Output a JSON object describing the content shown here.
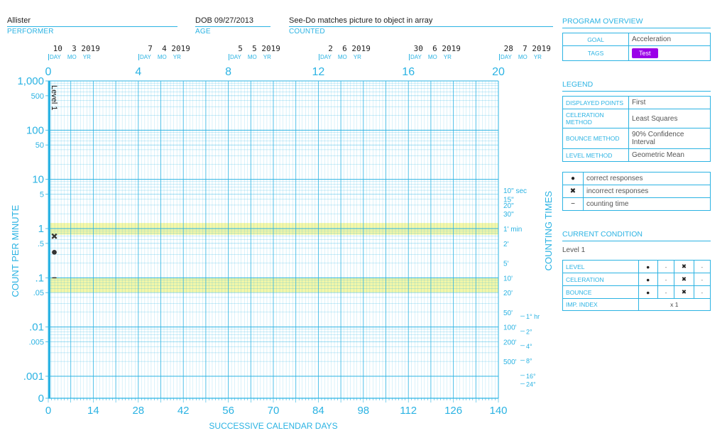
{
  "header": {
    "performer": {
      "value": "Allister",
      "label": "PERFORMER"
    },
    "age": {
      "value": "DOB 09/27/2013",
      "label": "AGE"
    },
    "counted": {
      "value": "See-Do matches picture to object in array",
      "label": "COUNTED"
    }
  },
  "dates": [
    {
      "day": "10",
      "mo": "3",
      "yr": "2019"
    },
    {
      "day": "7",
      "mo": "4",
      "yr": "2019"
    },
    {
      "day": "5",
      "mo": "5",
      "yr": "2019"
    },
    {
      "day": "2",
      "mo": "6",
      "yr": "2019"
    },
    {
      "day": "30",
      "mo": "6",
      "yr": "2019"
    },
    {
      "day": "28",
      "mo": "7",
      "yr": "2019"
    }
  ],
  "date_sub": {
    "day": "DAY",
    "mo": "MO",
    "yr": "YR"
  },
  "program": {
    "title": "PROGRAM OVERVIEW",
    "goal_label": "GOAL",
    "goal_value": "Acceleration",
    "tags_label": "TAGS",
    "tag": "Test"
  },
  "legend": {
    "title": "LEGEND",
    "rows": [
      {
        "k": "DISPLAYED POINTS",
        "v": "First"
      },
      {
        "k": "CELERATION METHOD",
        "v": "Least Squares"
      },
      {
        "k": "BOUNCE METHOD",
        "v": "90% Confidence Interval"
      },
      {
        "k": "LEVEL METHOD",
        "v": "Geometric Mean"
      }
    ],
    "symbols": [
      {
        "sym": "●",
        "label": "correct responses"
      },
      {
        "sym": "✖",
        "label": "incorrect responses"
      },
      {
        "sym": "−",
        "label": "counting time"
      }
    ]
  },
  "condition": {
    "title": "CURRENT CONDITION",
    "name": "Level 1",
    "rows": [
      {
        "k": "LEVEL",
        "a": "●",
        "b": "-",
        "c": "✖",
        "d": "-"
      },
      {
        "k": "CELERATION",
        "a": "●",
        "b": "-",
        "c": "✖",
        "d": "-"
      },
      {
        "k": "BOUNCE",
        "a": "●",
        "b": "-",
        "c": "✖",
        "d": "-"
      }
    ],
    "imp_label": "IMP. INDEX",
    "imp_value": "x 1"
  },
  "colors": {
    "grid": "#2bb3e3",
    "band": "#f5f7a8",
    "accent": "#9b00e8"
  },
  "chart_data": {
    "type": "scatter",
    "title": "",
    "ylabel": "COUNT PER MINUTE",
    "xlabel": "SUCCESSIVE CALENDAR DAYS",
    "right_label": "COUNTING TIMES",
    "y_scale": "log",
    "ylim": [
      0.0006,
      1000
    ],
    "xlim": [
      0,
      140
    ],
    "y_ticks": [
      {
        "v": 1000,
        "t": "1,000"
      },
      {
        "v": 500,
        "t": "500"
      },
      {
        "v": 100,
        "t": "100"
      },
      {
        "v": 50,
        "t": "50"
      },
      {
        "v": 10,
        "t": "10"
      },
      {
        "v": 5,
        "t": "5"
      },
      {
        "v": 1,
        "t": "1"
      },
      {
        "v": 0.5,
        "t": ".5"
      },
      {
        "v": 0.1,
        "t": ".1"
      },
      {
        "v": 0.05,
        "t": ".05"
      },
      {
        "v": 0.01,
        "t": ".01"
      },
      {
        "v": 0.005,
        "t": ".005"
      },
      {
        "v": 0.001,
        "t": ".001"
      },
      {
        "v": 0.0006,
        "t": "0"
      }
    ],
    "x_ticks": [
      0,
      14,
      28,
      42,
      56,
      70,
      84,
      98,
      112,
      126,
      140
    ],
    "week_ticks": [
      0,
      4,
      8,
      12,
      16,
      20
    ],
    "counting_times": [
      {
        "v": 6,
        "t": "10\" sec"
      },
      {
        "v": 4,
        "t": "15\""
      },
      {
        "v": 3,
        "t": "20\""
      },
      {
        "v": 2,
        "t": "30\""
      },
      {
        "v": 1,
        "t": "1' min"
      },
      {
        "v": 0.5,
        "t": "2'"
      },
      {
        "v": 0.2,
        "t": "5'"
      },
      {
        "v": 0.1,
        "t": "10'"
      },
      {
        "v": 0.05,
        "t": "20'"
      },
      {
        "v": 0.02,
        "t": "50'"
      },
      {
        "v": 0.01,
        "t": "100'"
      },
      {
        "v": 0.005,
        "t": "200'"
      },
      {
        "v": 0.002,
        "t": "500'"
      }
    ],
    "hour_times": [
      {
        "v": 0.0167,
        "t": "1° hr"
      },
      {
        "v": 0.0083,
        "t": "2°"
      },
      {
        "v": 0.0042,
        "t": "4°"
      },
      {
        "v": 0.0021,
        "t": "8°"
      },
      {
        "v": 0.00104,
        "t": "16°"
      },
      {
        "v": 0.0007,
        "t": "24°"
      }
    ],
    "bands": [
      {
        "from": 0.75,
        "to": 1.3
      },
      {
        "from": 0.05,
        "to": 0.1
      }
    ],
    "phase_label": "Level 1",
    "series": [
      {
        "name": "correct responses",
        "marker": "dot",
        "points": [
          {
            "x": 1,
            "y": 0.33
          }
        ]
      },
      {
        "name": "incorrect responses",
        "marker": "x",
        "points": [
          {
            "x": 1,
            "y": 0.7
          }
        ]
      },
      {
        "name": "counting time",
        "marker": "dash",
        "points": [
          {
            "x": 1,
            "y": 0.1
          }
        ]
      }
    ]
  }
}
